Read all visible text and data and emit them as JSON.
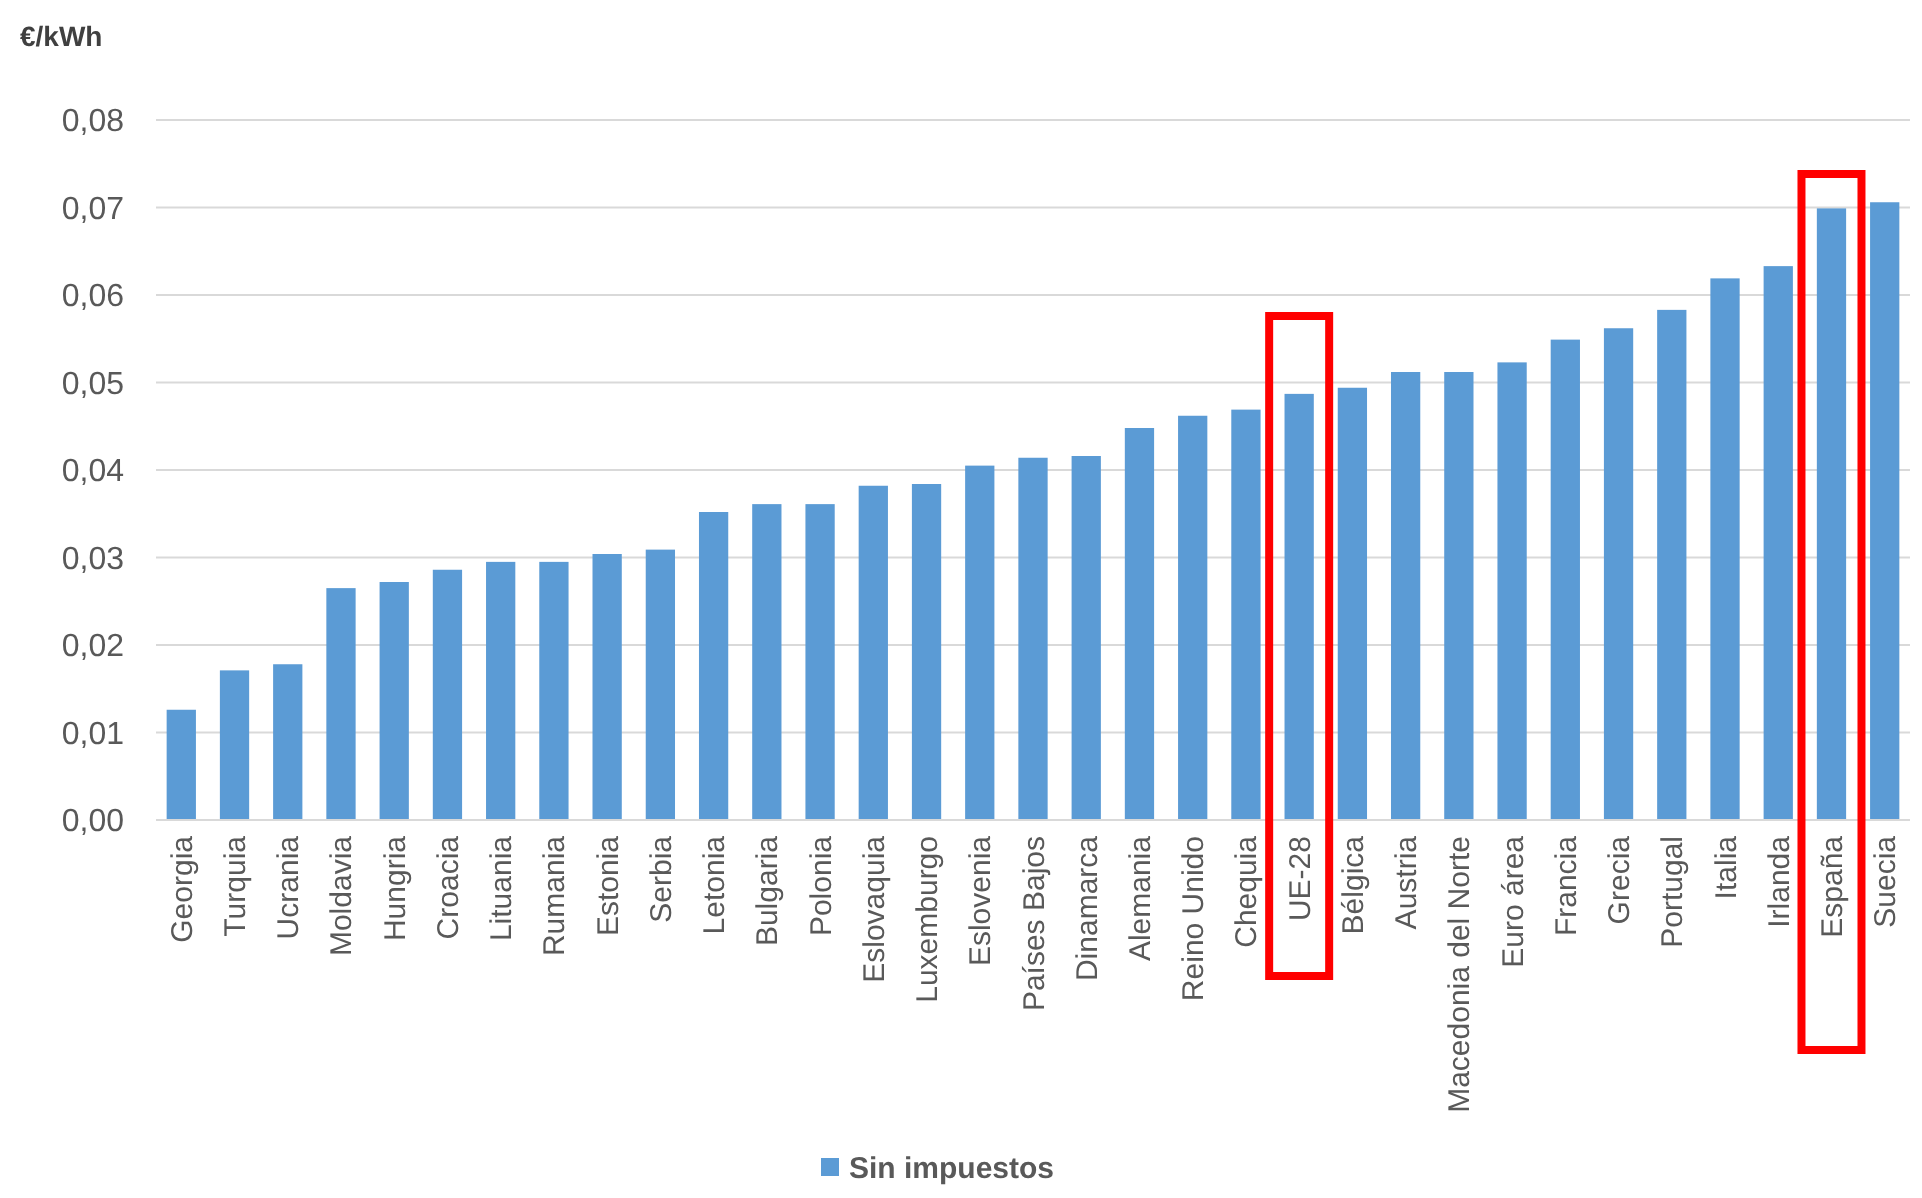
{
  "chart_data": {
    "type": "bar",
    "ylabel": "€/kWh",
    "categories": [
      "Georgia",
      "Turquia",
      "Ucrania",
      "Moldavia",
      "Hungria",
      "Croacia",
      "Lituania",
      "Rumania",
      "Estonia",
      "Serbia",
      "Letonia",
      "Bulgaria",
      "Polonia",
      "Eslovaquia",
      "Luxemburgo",
      "Eslovenia",
      "Países Bajos",
      "Dinamarca",
      "Alemania",
      "Reino Unido",
      "Chequia",
      "UE-28",
      "Bélgica",
      "Austria",
      "Macedonia del Norte",
      "Euro área",
      "Francia",
      "Grecia",
      "Portugal",
      "Italia",
      "Irlanda",
      "España",
      "Suecia"
    ],
    "series": [
      {
        "name": "Sin impuestos",
        "color": "#5b9bd5",
        "values": [
          0.0126,
          0.0171,
          0.0178,
          0.0265,
          0.0272,
          0.0286,
          0.0295,
          0.0295,
          0.0304,
          0.0309,
          0.0352,
          0.0361,
          0.0361,
          0.0382,
          0.0384,
          0.0405,
          0.0414,
          0.0416,
          0.0448,
          0.0462,
          0.0469,
          0.0487,
          0.0494,
          0.0512,
          0.0512,
          0.0523,
          0.0549,
          0.0562,
          0.0583,
          0.0619,
          0.0633,
          0.0699,
          0.0706
        ]
      }
    ],
    "ylim": [
      0,
      0.08
    ],
    "yticks": [
      {
        "value": 0,
        "label": "0,00"
      },
      {
        "value": 0.01,
        "label": "0,01"
      },
      {
        "value": 0.02,
        "label": "0,02"
      },
      {
        "value": 0.03,
        "label": "0,03"
      },
      {
        "value": 0.04,
        "label": "0,04"
      },
      {
        "value": 0.05,
        "label": "0,05"
      },
      {
        "value": 0.06,
        "label": "0,06"
      },
      {
        "value": 0.07,
        "label": "0,07"
      },
      {
        "value": 0.08,
        "label": "0,08"
      }
    ],
    "grid": "y",
    "legend": "bottom"
  }
}
